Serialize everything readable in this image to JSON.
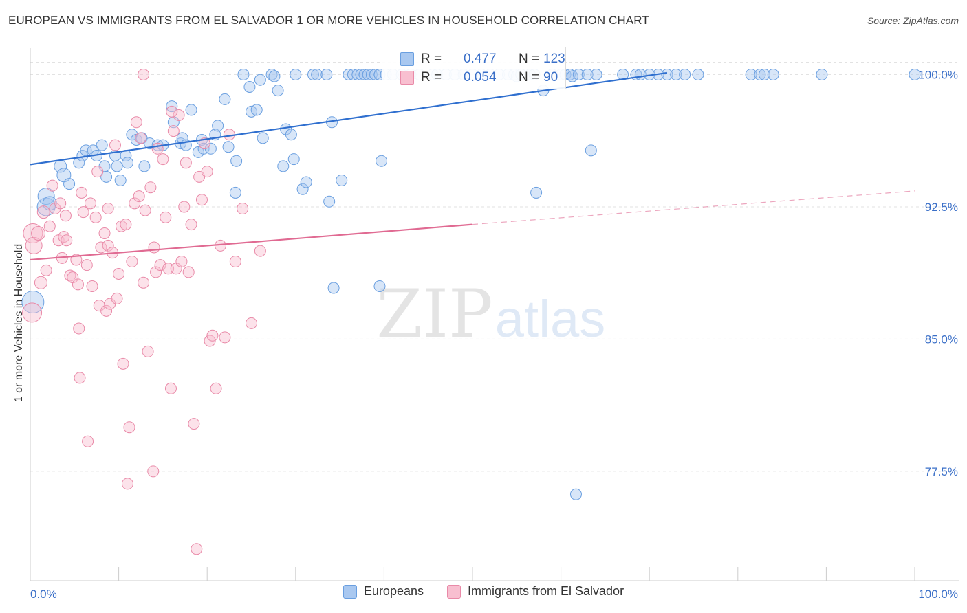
{
  "title": "EUROPEAN VS IMMIGRANTS FROM EL SALVADOR 1 OR MORE VEHICLES IN HOUSEHOLD CORRELATION CHART",
  "source": "Source: ZipAtlas.com",
  "watermark": {
    "zip": "ZIP",
    "atlas": "atlas"
  },
  "stats": [
    {
      "r_label": "R =",
      "r_value": "0.477",
      "n_label": "N =",
      "n_value": "123",
      "color": "#a9c8f0",
      "border": "#6a9fe0",
      "text_color": "#3a6fc8"
    },
    {
      "r_label": "R =",
      "r_value": "0.054",
      "n_label": "N =",
      "n_value": "90",
      "color": "#f8bfd0",
      "border": "#e98aa8",
      "text_color": "#3a6fc8"
    }
  ],
  "legend": [
    {
      "label": "Europeans",
      "color": "#a9c8f0",
      "border": "#6a9fe0"
    },
    {
      "label": "Immigrants from El Salvador",
      "color": "#f8bfd0",
      "border": "#e98aa8"
    }
  ],
  "chart_data": {
    "type": "scatter",
    "ylabel": "1 or more Vehicles in Household",
    "xlim": [
      0,
      100
    ],
    "ylim": [
      71.3,
      101.5
    ],
    "x_tick_labels": [
      {
        "value": 0,
        "label": "0.0%"
      },
      {
        "value": 100,
        "label": "100.0%"
      }
    ],
    "y_tick_labels": [
      {
        "value": 100,
        "label": "100.0%"
      },
      {
        "value": 92.5,
        "label": "92.5%"
      },
      {
        "value": 85,
        "label": "85.0%"
      },
      {
        "value": 77.5,
        "label": "77.5%"
      }
    ],
    "x_minor_ticks": [
      0,
      10,
      20,
      30,
      40,
      50,
      60,
      70,
      80,
      90,
      100
    ],
    "grid": true,
    "series": [
      {
        "name": "Europeans",
        "color": "#a9c8f0",
        "border": "#6a9fe0",
        "trend": {
          "x": [
            0,
            72
          ],
          "y": [
            94.9,
            100.1
          ],
          "color": "#2f6fcf"
        },
        "points": [
          [
            0.3,
            87.1,
            16
          ],
          [
            1.8,
            92.5,
            13
          ],
          [
            1.8,
            93.1,
            12
          ],
          [
            2.2,
            92.7,
            10
          ],
          [
            3.4,
            94.8,
            9
          ],
          [
            3.8,
            94.3,
            10
          ],
          [
            4.4,
            93.8,
            8
          ],
          [
            5.5,
            95.0,
            8
          ],
          [
            5.9,
            95.4,
            8
          ],
          [
            6.3,
            95.7,
            8
          ],
          [
            7.1,
            95.7,
            8
          ],
          [
            7.5,
            95.4,
            8
          ],
          [
            8.1,
            96.0,
            8
          ],
          [
            8.4,
            94.8,
            8
          ],
          [
            8.6,
            94.2,
            8
          ],
          [
            9.6,
            95.4,
            8
          ],
          [
            9.8,
            94.8,
            8
          ],
          [
            10.2,
            94.0,
            8
          ],
          [
            10.8,
            95.4,
            8
          ],
          [
            11.0,
            95.0,
            8
          ],
          [
            11.5,
            96.6,
            8
          ],
          [
            12.0,
            96.3,
            8
          ],
          [
            12.6,
            96.4,
            8
          ],
          [
            12.9,
            94.8,
            8
          ],
          [
            13.5,
            96.1,
            8
          ],
          [
            14.4,
            96.0,
            8
          ],
          [
            15.0,
            96.0,
            8
          ],
          [
            16.0,
            98.2,
            8
          ],
          [
            16.2,
            97.3,
            8
          ],
          [
            17.0,
            96.1,
            8
          ],
          [
            17.2,
            96.4,
            8
          ],
          [
            17.6,
            96.0,
            8
          ],
          [
            18.2,
            98.0,
            8
          ],
          [
            19.0,
            95.6,
            8
          ],
          [
            19.4,
            96.3,
            8
          ],
          [
            19.6,
            95.8,
            8
          ],
          [
            20.4,
            95.8,
            8
          ],
          [
            20.9,
            96.6,
            8
          ],
          [
            21.2,
            97.1,
            8
          ],
          [
            22.0,
            98.6,
            8
          ],
          [
            22.4,
            95.9,
            8
          ],
          [
            23.2,
            93.3,
            8
          ],
          [
            23.3,
            95.1,
            8
          ],
          [
            24.1,
            100.0,
            8
          ],
          [
            24.8,
            99.3,
            8
          ],
          [
            25.0,
            97.9,
            8
          ],
          [
            25.6,
            98.0,
            8
          ],
          [
            26.0,
            99.7,
            8
          ],
          [
            26.3,
            96.4,
            8
          ],
          [
            27.3,
            100.0,
            8
          ],
          [
            27.6,
            99.9,
            8
          ],
          [
            28.0,
            99.1,
            8
          ],
          [
            28.6,
            94.8,
            8
          ],
          [
            28.9,
            96.9,
            8
          ],
          [
            29.5,
            96.6,
            8
          ],
          [
            29.8,
            95.2,
            8
          ],
          [
            30.0,
            100.0,
            8
          ],
          [
            30.8,
            93.5,
            8
          ],
          [
            31.2,
            93.9,
            8
          ],
          [
            32.0,
            100.0,
            8
          ],
          [
            32.4,
            100.0,
            8
          ],
          [
            33.5,
            100.0,
            8
          ],
          [
            33.8,
            92.8,
            8
          ],
          [
            34.1,
            97.3,
            8
          ],
          [
            34.3,
            87.9,
            8
          ],
          [
            35.2,
            94.0,
            8
          ],
          [
            36.0,
            100.0,
            8
          ],
          [
            36.5,
            100.0,
            8
          ],
          [
            37.0,
            100.0,
            8
          ],
          [
            37.4,
            100.0,
            8
          ],
          [
            37.8,
            100.0,
            8
          ],
          [
            38.2,
            100.0,
            8
          ],
          [
            38.6,
            100.0,
            8
          ],
          [
            39.0,
            100.0,
            8
          ],
          [
            39.5,
            100.0,
            8
          ],
          [
            39.5,
            88.0,
            8
          ],
          [
            39.7,
            95.1,
            8
          ],
          [
            40.2,
            100.0,
            8
          ],
          [
            41.0,
            100.0,
            8
          ],
          [
            42.0,
            100.0,
            8
          ],
          [
            43.0,
            100.0,
            8
          ],
          [
            44.0,
            100.0,
            8
          ],
          [
            45.5,
            100.0,
            8
          ],
          [
            46.0,
            100.0,
            8
          ],
          [
            47.0,
            100.0,
            8
          ],
          [
            48.0,
            100.0,
            8
          ],
          [
            49.0,
            100.0,
            8
          ],
          [
            50.0,
            100.0,
            8
          ],
          [
            51.0,
            100.0,
            8
          ],
          [
            52.0,
            100.0,
            8
          ],
          [
            53.0,
            100.0,
            8
          ],
          [
            54.0,
            100.0,
            8
          ],
          [
            54.7,
            100.0,
            8
          ],
          [
            55.0,
            99.9,
            8
          ],
          [
            55.5,
            100.0,
            8
          ],
          [
            56.5,
            100.0,
            8
          ],
          [
            57.0,
            100.0,
            8
          ],
          [
            57.2,
            93.3,
            8
          ],
          [
            58.0,
            99.1,
            8
          ],
          [
            59.0,
            100.0,
            8
          ],
          [
            60.0,
            100.0,
            8
          ],
          [
            60.5,
            100.0,
            8
          ],
          [
            61.0,
            100.0,
            8
          ],
          [
            61.3,
            99.9,
            8
          ],
          [
            61.7,
            76.2,
            8
          ],
          [
            62.0,
            100.0,
            8
          ],
          [
            63.0,
            100.0,
            8
          ],
          [
            63.4,
            95.7,
            8
          ],
          [
            64.0,
            100.0,
            8
          ],
          [
            67.0,
            100.0,
            8
          ],
          [
            68.5,
            100.0,
            8
          ],
          [
            69.0,
            100.0,
            8
          ],
          [
            70.0,
            100.0,
            8
          ],
          [
            71.0,
            100.0,
            8
          ],
          [
            72.0,
            100.0,
            8
          ],
          [
            73.0,
            100.0,
            8
          ],
          [
            74.0,
            100.0,
            8
          ],
          [
            75.5,
            100.0,
            8
          ],
          [
            81.5,
            100.0,
            8
          ],
          [
            82.5,
            100.0,
            8
          ],
          [
            83.0,
            100.0,
            8
          ],
          [
            84.0,
            100.0,
            8
          ],
          [
            89.5,
            100.0,
            8
          ],
          [
            100.0,
            100.0,
            8
          ]
        ]
      },
      {
        "name": "Immigrants from El Salvador",
        "color": "#f8bfd0",
        "border": "#e98aa8",
        "trend": {
          "x": [
            0,
            50
          ],
          "y": [
            89.5,
            91.5
          ],
          "color": "#e06a92",
          "dash_to": [
            100,
            93.4
          ]
        },
        "points": [
          [
            0.2,
            86.5,
            14
          ],
          [
            0.3,
            91.0,
            14
          ],
          [
            0.4,
            90.3,
            12
          ],
          [
            0.9,
            91.0,
            10
          ],
          [
            1.2,
            88.2,
            9
          ],
          [
            1.5,
            92.2,
            9
          ],
          [
            1.8,
            88.9,
            8
          ],
          [
            2.2,
            91.4,
            8
          ],
          [
            2.5,
            93.7,
            8
          ],
          [
            2.8,
            92.4,
            8
          ],
          [
            3.2,
            90.6,
            8
          ],
          [
            3.4,
            92.7,
            8
          ],
          [
            3.6,
            89.6,
            8
          ],
          [
            3.8,
            90.8,
            8
          ],
          [
            4.1,
            90.6,
            8
          ],
          [
            4.5,
            88.6,
            8
          ],
          [
            4.8,
            88.5,
            8
          ],
          [
            5.2,
            89.5,
            8
          ],
          [
            5.4,
            88.1,
            8
          ],
          [
            5.5,
            85.6,
            8
          ],
          [
            5.6,
            82.8,
            8
          ],
          [
            5.8,
            93.3,
            8
          ],
          [
            6.0,
            92.2,
            8
          ],
          [
            6.4,
            89.2,
            8
          ],
          [
            6.5,
            79.2,
            8
          ],
          [
            6.8,
            92.7,
            8
          ],
          [
            7.0,
            88.0,
            8
          ],
          [
            7.4,
            91.9,
            8
          ],
          [
            7.6,
            94.5,
            8
          ],
          [
            7.8,
            86.9,
            8
          ],
          [
            8.0,
            90.2,
            8
          ],
          [
            8.4,
            91.0,
            8
          ],
          [
            8.6,
            86.6,
            8
          ],
          [
            8.8,
            90.3,
            8
          ],
          [
            9.0,
            87.0,
            8
          ],
          [
            9.3,
            89.9,
            8
          ],
          [
            9.6,
            96.0,
            8
          ],
          [
            9.8,
            87.3,
            8
          ],
          [
            10.0,
            88.7,
            8
          ],
          [
            10.3,
            91.4,
            8
          ],
          [
            10.5,
            83.6,
            8
          ],
          [
            10.8,
            91.5,
            8
          ],
          [
            11.0,
            76.8,
            8
          ],
          [
            11.2,
            80.0,
            8
          ],
          [
            11.5,
            89.4,
            8
          ],
          [
            11.8,
            92.7,
            8
          ],
          [
            12.0,
            97.3,
            8
          ],
          [
            12.3,
            93.1,
            8
          ],
          [
            12.5,
            96.4,
            8
          ],
          [
            12.8,
            88.2,
            8
          ],
          [
            13.0,
            92.3,
            8
          ],
          [
            13.3,
            84.3,
            8
          ],
          [
            13.6,
            93.6,
            8
          ],
          [
            13.9,
            77.5,
            8
          ],
          [
            14.0,
            90.2,
            8
          ],
          [
            14.2,
            88.8,
            8
          ],
          [
            14.4,
            95.8,
            8
          ],
          [
            14.7,
            89.2,
            8
          ],
          [
            15.0,
            95.2,
            8
          ],
          [
            15.3,
            91.9,
            8
          ],
          [
            15.6,
            89.0,
            8
          ],
          [
            15.9,
            82.2,
            8
          ],
          [
            16.2,
            96.8,
            8
          ],
          [
            16.5,
            89.0,
            8
          ],
          [
            16.8,
            97.7,
            8
          ],
          [
            17.1,
            89.4,
            8
          ],
          [
            17.4,
            92.5,
            8
          ],
          [
            17.6,
            95.0,
            8
          ],
          [
            17.9,
            88.8,
            8
          ],
          [
            18.2,
            91.5,
            8
          ],
          [
            18.5,
            80.2,
            8
          ],
          [
            18.8,
            73.1,
            8
          ],
          [
            19.1,
            94.2,
            8
          ],
          [
            19.4,
            92.9,
            8
          ],
          [
            19.7,
            96.1,
            8
          ],
          [
            20.0,
            94.5,
            8
          ],
          [
            20.3,
            84.9,
            8
          ],
          [
            20.6,
            85.2,
            8
          ],
          [
            21.0,
            82.2,
            8
          ],
          [
            21.5,
            90.3,
            8
          ],
          [
            22.0,
            85.1,
            8
          ],
          [
            22.5,
            96.6,
            8
          ],
          [
            23.2,
            89.4,
            8
          ],
          [
            24.0,
            92.4,
            8
          ],
          [
            25.0,
            85.9,
            8
          ],
          [
            26.0,
            90.0,
            8
          ],
          [
            12.8,
            100.0,
            8
          ],
          [
            16.0,
            97.9,
            8
          ],
          [
            8.8,
            92.4,
            8
          ],
          [
            4.0,
            92.0,
            8
          ]
        ]
      }
    ]
  }
}
